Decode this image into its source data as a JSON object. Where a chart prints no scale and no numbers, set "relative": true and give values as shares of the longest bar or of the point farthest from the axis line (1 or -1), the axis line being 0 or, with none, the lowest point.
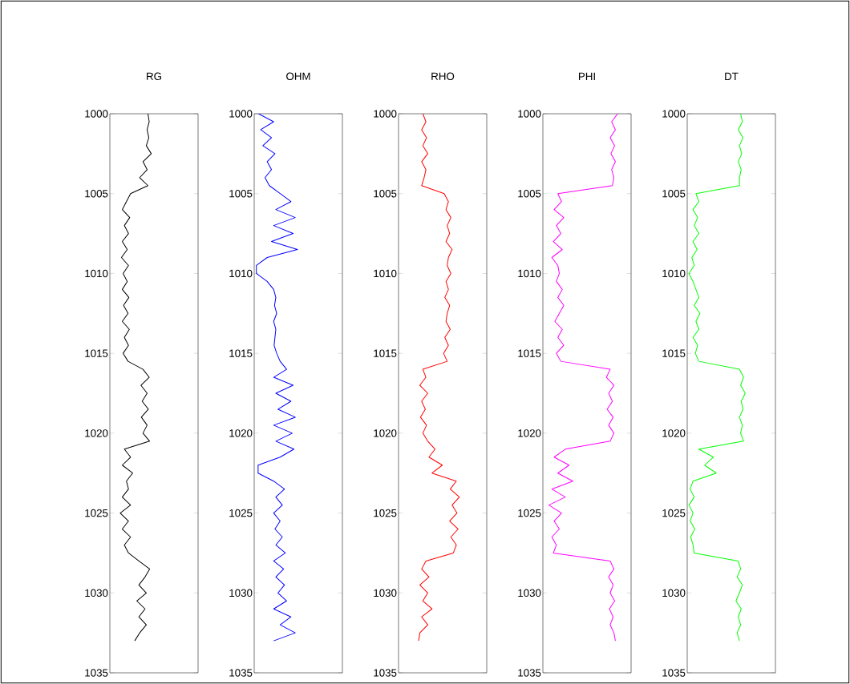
{
  "chart_data": [
    {
      "type": "line",
      "title": "RG",
      "relative": true,
      "orientation": "horizontal",
      "ylim": [
        1035,
        1000
      ],
      "yticks": [
        1000,
        1005,
        1010,
        1015,
        1020,
        1025,
        1030,
        1035
      ],
      "tick_labels": "y",
      "x": [
        1000,
        1000.5,
        1001,
        1001.5,
        1002,
        1002.5,
        1003,
        1003.5,
        1004,
        1004.5,
        1005,
        1005.5,
        1006,
        1006.5,
        1007,
        1007.5,
        1008,
        1008.5,
        1009,
        1009.5,
        1010,
        1010.5,
        1011,
        1011.5,
        1012,
        1012.5,
        1013,
        1013.5,
        1014,
        1014.5,
        1015,
        1015.5,
        1016,
        1016.5,
        1017,
        1017.5,
        1018,
        1018.5,
        1019,
        1019.5,
        1020,
        1020.5,
        1021,
        1021.5,
        1022,
        1022.5,
        1023,
        1023.5,
        1024,
        1024.5,
        1025,
        1025.5,
        1026,
        1026.5,
        1027,
        1027.5,
        1028,
        1028.5,
        1029,
        1029.5,
        1030,
        1030.5,
        1031,
        1031.5,
        1032,
        1032.5,
        1033
      ],
      "series": [
        {
          "color": "#000000",
          "values": [
            0.92,
            0.95,
            0.9,
            0.94,
            0.88,
            1.0,
            0.8,
            0.9,
            0.72,
            0.92,
            0.5,
            0.4,
            0.3,
            0.48,
            0.35,
            0.45,
            0.3,
            0.42,
            0.28,
            0.45,
            0.32,
            0.42,
            0.3,
            0.46,
            0.33,
            0.44,
            0.3,
            0.47,
            0.35,
            0.45,
            0.32,
            0.44,
            0.8,
            0.95,
            0.75,
            0.9,
            0.78,
            0.93,
            0.76,
            0.9,
            0.8,
            0.96,
            0.35,
            0.5,
            0.3,
            0.55,
            0.4,
            0.45,
            0.3,
            0.5,
            0.25,
            0.45,
            0.3,
            0.5,
            0.35,
            0.45,
            0.7,
            0.96,
            0.85,
            0.7,
            0.88,
            0.65,
            0.85,
            0.7,
            0.88,
            0.72,
            0.6
          ]
        }
      ]
    },
    {
      "type": "line",
      "title": "OHM",
      "relative": true,
      "orientation": "horizontal",
      "ylim": [
        1035,
        1000
      ],
      "yticks": [
        1000,
        1005,
        1010,
        1015,
        1020,
        1025,
        1030,
        1035
      ],
      "tick_labels": "y",
      "x": [
        1000,
        1000.5,
        1001,
        1001.5,
        1002,
        1002.5,
        1003,
        1003.5,
        1004,
        1004.5,
        1005,
        1005.5,
        1006,
        1006.5,
        1007,
        1007.5,
        1008,
        1008.5,
        1009,
        1009.5,
        1010,
        1010.5,
        1011,
        1011.5,
        1012,
        1012.5,
        1013,
        1013.5,
        1014,
        1014.5,
        1015,
        1015.5,
        1016,
        1016.5,
        1017,
        1017.5,
        1018,
        1018.5,
        1019,
        1019.5,
        1020,
        1020.5,
        1021,
        1021.5,
        1022,
        1022.5,
        1023,
        1023.5,
        1024,
        1024.5,
        1025,
        1025.5,
        1026,
        1026.5,
        1027,
        1027.5,
        1028,
        1028.5,
        1029,
        1029.5,
        1030,
        1030.5,
        1031,
        1031.5,
        1032,
        1032.5,
        1033
      ],
      "series": [
        {
          "color": "#0000ff",
          "values": [
            0.1,
            0.45,
            0.15,
            0.4,
            0.2,
            0.48,
            0.3,
            0.4,
            0.25,
            0.35,
            0.6,
            0.85,
            0.5,
            0.95,
            0.45,
            0.9,
            0.4,
            1.0,
            0.3,
            0.05,
            0.05,
            0.3,
            0.45,
            0.5,
            0.47,
            0.52,
            0.45,
            0.5,
            0.48,
            0.46,
            0.52,
            0.6,
            0.75,
            0.45,
            0.9,
            0.5,
            0.85,
            0.55,
            0.95,
            0.45,
            0.88,
            0.5,
            0.92,
            0.6,
            0.09,
            0.09,
            0.45,
            0.7,
            0.5,
            0.65,
            0.45,
            0.6,
            0.48,
            0.65,
            0.5,
            0.72,
            0.45,
            0.68,
            0.5,
            0.7,
            0.55,
            0.75,
            0.45,
            0.85,
            0.6,
            0.95,
            0.45
          ]
        }
      ]
    },
    {
      "type": "line",
      "title": "RHO",
      "relative": true,
      "orientation": "horizontal",
      "ylim": [
        1035,
        1000
      ],
      "yticks": [
        1000,
        1005,
        1010,
        1015,
        1020,
        1025,
        1030,
        1035
      ],
      "tick_labels": "y",
      "x": [
        1000,
        1000.5,
        1001,
        1001.5,
        1002,
        1002.5,
        1003,
        1003.5,
        1004,
        1004.5,
        1005,
        1005.5,
        1006,
        1006.5,
        1007,
        1007.5,
        1008,
        1008.5,
        1009,
        1009.5,
        1010,
        1010.5,
        1011,
        1011.5,
        1012,
        1012.5,
        1013,
        1013.5,
        1014,
        1014.5,
        1015,
        1015.5,
        1016,
        1016.5,
        1017,
        1017.5,
        1018,
        1018.5,
        1019,
        1019.5,
        1020,
        1020.5,
        1021,
        1021.5,
        1022,
        1022.5,
        1023,
        1023.5,
        1024,
        1024.5,
        1025,
        1025.5,
        1026,
        1026.5,
        1027,
        1027.5,
        1028,
        1028.5,
        1029,
        1029.5,
        1030,
        1030.5,
        1031,
        1031.5,
        1032,
        1032.5,
        1033
      ],
      "series": [
        {
          "color": "#ff0000",
          "values": [
            0.4,
            0.45,
            0.38,
            0.46,
            0.4,
            0.48,
            0.38,
            0.45,
            0.42,
            0.38,
            0.75,
            0.82,
            0.78,
            0.86,
            0.8,
            0.84,
            0.78,
            0.88,
            0.82,
            0.8,
            0.86,
            0.78,
            0.82,
            0.76,
            0.84,
            0.8,
            0.78,
            0.85,
            0.76,
            0.82,
            0.74,
            0.8,
            0.4,
            0.45,
            0.35,
            0.48,
            0.38,
            0.44,
            0.36,
            0.46,
            0.4,
            0.48,
            0.6,
            0.5,
            0.72,
            0.55,
            0.95,
            0.85,
            1.0,
            0.88,
            0.96,
            0.84,
            0.98,
            0.86,
            0.95,
            0.9,
            0.45,
            0.38,
            0.5,
            0.35,
            0.48,
            0.4,
            0.55,
            0.38,
            0.48,
            0.35,
            0.33
          ]
        }
      ]
    },
    {
      "type": "line",
      "title": "PHI",
      "relative": true,
      "orientation": "horizontal",
      "ylim": [
        1035,
        1000
      ],
      "yticks": [
        1000,
        1005,
        1010,
        1015,
        1020,
        1025,
        1030,
        1035
      ],
      "tick_labels": "y",
      "x": [
        1000,
        1000.5,
        1001,
        1001.5,
        1002,
        1002.5,
        1003,
        1003.5,
        1004,
        1004.5,
        1005,
        1005.5,
        1006,
        1006.5,
        1007,
        1007.5,
        1008,
        1008.5,
        1009,
        1009.5,
        1010,
        1010.5,
        1011,
        1011.5,
        1012,
        1012.5,
        1013,
        1013.5,
        1014,
        1014.5,
        1015,
        1015.5,
        1016,
        1016.5,
        1017,
        1017.5,
        1018,
        1018.5,
        1019,
        1019.5,
        1020,
        1020.5,
        1021,
        1021.5,
        1022,
        1022.5,
        1023,
        1023.5,
        1024,
        1024.5,
        1025,
        1025.5,
        1026,
        1026.5,
        1027,
        1027.5,
        1028,
        1028.5,
        1029,
        1029.5,
        1030,
        1030.5,
        1031,
        1031.5,
        1032,
        1032.5,
        1033
      ],
      "series": [
        {
          "color": "#ff00ff",
          "values": [
            1.0,
            0.92,
            0.97,
            0.9,
            0.96,
            0.91,
            0.97,
            0.92,
            0.95,
            0.93,
            0.2,
            0.25,
            0.15,
            0.28,
            0.18,
            0.24,
            0.14,
            0.26,
            0.12,
            0.2,
            0.22,
            0.18,
            0.26,
            0.2,
            0.28,
            0.22,
            0.16,
            0.26,
            0.2,
            0.28,
            0.18,
            0.24,
            0.9,
            0.85,
            0.95,
            0.88,
            0.93,
            0.86,
            0.94,
            0.88,
            0.95,
            0.9,
            0.3,
            0.15,
            0.35,
            0.2,
            0.4,
            0.12,
            0.3,
            0.08,
            0.25,
            0.15,
            0.22,
            0.12,
            0.18,
            0.14,
            0.9,
            0.95,
            0.88,
            0.94,
            0.9,
            0.96,
            0.89,
            0.94,
            0.9,
            0.95,
            0.97
          ]
        }
      ]
    },
    {
      "type": "line",
      "title": "DT",
      "relative": true,
      "orientation": "horizontal",
      "ylim": [
        1035,
        1000
      ],
      "yticks": [
        1000,
        1005,
        1010,
        1015,
        1020,
        1025,
        1030,
        1035
      ],
      "tick_labels": "y",
      "x": [
        1000,
        1000.5,
        1001,
        1001.5,
        1002,
        1002.5,
        1003,
        1003.5,
        1004,
        1004.5,
        1005,
        1005.5,
        1006,
        1006.5,
        1007,
        1007.5,
        1008,
        1008.5,
        1009,
        1009.5,
        1010,
        1010.5,
        1011,
        1011.5,
        1012,
        1012.5,
        1013,
        1013.5,
        1014,
        1014.5,
        1015,
        1015.5,
        1016,
        1016.5,
        1017,
        1017.5,
        1018,
        1018.5,
        1019,
        1019.5,
        1020,
        1020.5,
        1021,
        1021.5,
        1022,
        1022.5,
        1023,
        1023.5,
        1024,
        1024.5,
        1025,
        1025.5,
        1026,
        1026.5,
        1027,
        1027.5,
        1028,
        1028.5,
        1029,
        1029.5,
        1030,
        1030.5,
        1031,
        1031.5,
        1032,
        1032.5,
        1033
      ],
      "series": [
        {
          "color": "#00ff00",
          "values": [
            0.92,
            0.95,
            0.88,
            0.96,
            0.9,
            0.94,
            0.88,
            0.93,
            0.9,
            0.9,
            0.15,
            0.2,
            0.1,
            0.18,
            0.12,
            0.2,
            0.1,
            0.17,
            0.08,
            0.12,
            0.03,
            0.1,
            0.15,
            0.2,
            0.12,
            0.22,
            0.15,
            0.2,
            0.1,
            0.18,
            0.14,
            0.2,
            0.9,
            0.97,
            0.92,
            1.0,
            0.93,
            0.96,
            0.9,
            0.95,
            0.92,
            0.97,
            0.2,
            0.45,
            0.3,
            0.5,
            0.1,
            0.05,
            0.12,
            0.03,
            0.1,
            0.05,
            0.13,
            0.06,
            0.1,
            0.12,
            0.88,
            0.92,
            0.86,
            0.95,
            0.9,
            0.84,
            0.93,
            0.88,
            0.92,
            0.86,
            0.9
          ]
        }
      ]
    }
  ]
}
